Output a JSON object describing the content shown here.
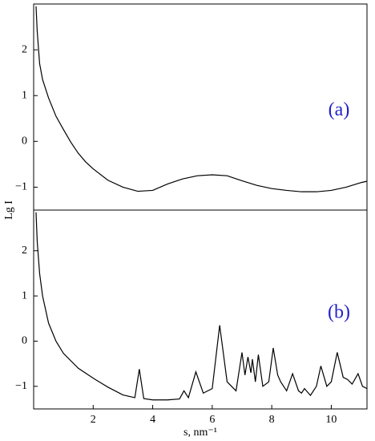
{
  "chart_data": [
    {
      "type": "line",
      "annotation": "(a)",
      "annotation_color": "#2222cc",
      "ylabel": "Lg I",
      "xlim": [
        0,
        11.2
      ],
      "ylim": [
        -1.5,
        3
      ],
      "yticks": [
        {
          "value": -1,
          "label": "−1"
        },
        0,
        1,
        2
      ],
      "x": [
        0.08,
        0.12,
        0.2,
        0.3,
        0.5,
        0.75,
        1,
        1.25,
        1.5,
        1.75,
        2,
        2.5,
        3,
        3.5,
        4,
        4.5,
        5,
        5.5,
        6,
        6.5,
        7,
        7.5,
        8,
        8.5,
        9,
        9.5,
        10,
        10.5,
        11,
        11.2
      ],
      "series": [
        {
          "color": "#000000",
          "values": [
            2.95,
            2.4,
            1.7,
            1.35,
            0.95,
            0.55,
            0.26,
            -0.02,
            -0.26,
            -0.45,
            -0.6,
            -0.85,
            -1.0,
            -1.09,
            -1.07,
            -0.93,
            -0.82,
            -0.75,
            -0.73,
            -0.75,
            -0.86,
            -0.96,
            -1.03,
            -1.07,
            -1.1,
            -1.1,
            -1.07,
            -1.0,
            -0.9,
            -0.87
          ]
        }
      ]
    },
    {
      "type": "line",
      "annotation": "(b)",
      "annotation_color": "#2222cc",
      "xlabel": "s, nm⁻¹",
      "xlim": [
        0,
        11.2
      ],
      "ylim": [
        -1.5,
        2.9
      ],
      "xticks": [
        2,
        4,
        6,
        8,
        10
      ],
      "yticks": [
        {
          "value": -1,
          "label": "−1"
        },
        0,
        1,
        2
      ],
      "x": [
        0.08,
        0.12,
        0.2,
        0.3,
        0.5,
        0.75,
        1,
        1.5,
        2,
        2.5,
        3,
        3.4,
        3.55,
        3.7,
        4,
        4.5,
        4.9,
        5.05,
        5.2,
        5.45,
        5.7,
        6,
        6.25,
        6.5,
        6.8,
        7,
        7.1,
        7.2,
        7.3,
        7.35,
        7.45,
        7.55,
        7.7,
        7.9,
        8.05,
        8.2,
        8.3,
        8.5,
        8.7,
        8.9,
        9,
        9.1,
        9.3,
        9.5,
        9.65,
        9.85,
        10,
        10.2,
        10.4,
        10.55,
        10.7,
        10.9,
        11.05,
        11.2
      ],
      "series": [
        {
          "color": "#000000",
          "values": [
            2.85,
            2.2,
            1.5,
            1.0,
            0.4,
            0.0,
            -0.27,
            -0.6,
            -0.82,
            -1.02,
            -1.19,
            -1.25,
            -0.62,
            -1.27,
            -1.3,
            -1.3,
            -1.28,
            -1.1,
            -1.25,
            -0.68,
            -1.15,
            -1.05,
            0.35,
            -0.9,
            -1.1,
            -0.25,
            -0.75,
            -0.35,
            -0.7,
            -0.4,
            -0.9,
            -0.3,
            -1.0,
            -0.9,
            -0.15,
            -0.75,
            -0.9,
            -1.1,
            -0.72,
            -1.1,
            -1.15,
            -1.05,
            -1.2,
            -1.0,
            -0.55,
            -1.0,
            -0.9,
            -0.25,
            -0.8,
            -0.85,
            -0.95,
            -0.72,
            -1.0,
            -1.05
          ]
        }
      ]
    }
  ]
}
